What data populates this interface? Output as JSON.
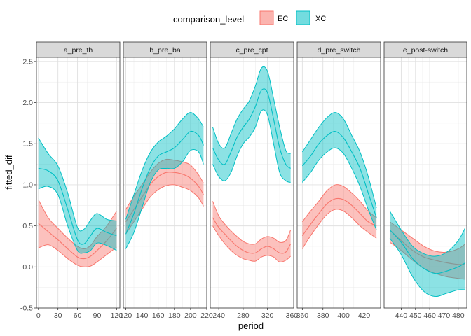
{
  "chart_data": {
    "type": "area",
    "xlabel": "period",
    "ylabel": "fitted_dif",
    "ylim": [
      -0.5,
      2.55
    ],
    "y_ticks": [
      -0.5,
      0.0,
      0.5,
      1.0,
      1.5,
      2.0,
      2.5
    ],
    "y_tick_labels": [
      "-0.5",
      "0.0",
      "0.5",
      "1.0",
      "1.5",
      "2.0",
      "2.5"
    ],
    "grid": true,
    "legend": {
      "title": "comparison_level",
      "position": "top",
      "entries": [
        {
          "name": "EC",
          "color": "#F8766D"
        },
        {
          "name": "XC",
          "color": "#00BFC4"
        }
      ]
    },
    "panels": [
      {
        "strip": "a_pre_th",
        "xlim": [
          -3,
          125
        ],
        "x_ticks": [
          0,
          30,
          60,
          90,
          120
        ],
        "x_tick_labels": [
          "0",
          "30",
          "60",
          "90",
          "120"
        ],
        "series": [
          {
            "name": "EC",
            "x": [
              0,
              15,
              30,
              45,
              60,
              70,
              80,
              90,
              105,
              120
            ],
            "fit": [
              0.53,
              0.43,
              0.33,
              0.22,
              0.12,
              0.1,
              0.13,
              0.2,
              0.32,
              0.47
            ],
            "lower": [
              0.23,
              0.27,
              0.2,
              0.1,
              0.02,
              0.0,
              0.01,
              0.06,
              0.15,
              0.24
            ],
            "upper": [
              0.82,
              0.6,
              0.47,
              0.35,
              0.25,
              0.22,
              0.26,
              0.37,
              0.5,
              0.68
            ]
          },
          {
            "name": "XC",
            "x": [
              0,
              15,
              30,
              45,
              60,
              70,
              80,
              90,
              105,
              120
            ],
            "fit": [
              1.2,
              1.17,
              1.05,
              0.7,
              0.33,
              0.28,
              0.38,
              0.47,
              0.42,
              0.38
            ],
            "lower": [
              0.95,
              0.98,
              0.88,
              0.5,
              0.2,
              0.17,
              0.2,
              0.29,
              0.26,
              0.2
            ],
            "upper": [
              1.57,
              1.38,
              1.23,
              0.9,
              0.48,
              0.46,
              0.57,
              0.65,
              0.58,
              0.56
            ]
          }
        ]
      },
      {
        "strip": "b_pre_ba",
        "xlim": [
          117,
          220
        ],
        "x_ticks": [
          120,
          140,
          160,
          180,
          200,
          220
        ],
        "x_tick_labels": [
          "120",
          "140",
          "160",
          "180",
          "200",
          "220"
        ],
        "series": [
          {
            "name": "EC",
            "x": [
              120,
              130,
              140,
              150,
              160,
              170,
              180,
              190,
              200,
              210,
              216
            ],
            "fit": [
              0.55,
              0.7,
              0.85,
              1.0,
              1.1,
              1.15,
              1.15,
              1.13,
              1.08,
              0.98,
              0.88
            ],
            "lower": [
              0.4,
              0.55,
              0.7,
              0.85,
              0.94,
              0.99,
              1.0,
              0.97,
              0.93,
              0.84,
              0.74
            ],
            "upper": [
              0.7,
              0.86,
              1.0,
              1.15,
              1.26,
              1.31,
              1.3,
              1.28,
              1.24,
              1.12,
              1.02
            ]
          },
          {
            "name": "XC",
            "x": [
              120,
              130,
              140,
              150,
              160,
              170,
              180,
              190,
              200,
              210,
              216
            ],
            "fit": [
              0.4,
              0.65,
              0.95,
              1.2,
              1.35,
              1.4,
              1.45,
              1.55,
              1.65,
              1.6,
              1.48
            ],
            "lower": [
              0.22,
              0.42,
              0.72,
              1.02,
              1.18,
              1.2,
              1.2,
              1.28,
              1.42,
              1.4,
              1.25
            ],
            "upper": [
              0.58,
              0.88,
              1.17,
              1.39,
              1.52,
              1.59,
              1.68,
              1.8,
              1.88,
              1.8,
              1.7
            ]
          }
        ]
      },
      {
        "strip": "c_pre_cpt",
        "xlim": [
          226,
          363
        ],
        "x_ticks": [
          240,
          280,
          320,
          360
        ],
        "x_tick_labels": [
          "240",
          "280",
          "320",
          "360"
        ],
        "series": [
          {
            "name": "EC",
            "x": [
              230,
              240,
              250,
              260,
              270,
              280,
              290,
              300,
              310,
              320,
              330,
              340,
              350,
              358
            ],
            "fit": [
              0.6,
              0.48,
              0.4,
              0.32,
              0.25,
              0.2,
              0.17,
              0.17,
              0.22,
              0.25,
              0.22,
              0.17,
              0.18,
              0.28
            ],
            "lower": [
              0.5,
              0.38,
              0.28,
              0.2,
              0.14,
              0.1,
              0.08,
              0.07,
              0.12,
              0.14,
              0.12,
              0.06,
              0.08,
              0.13
            ],
            "upper": [
              0.8,
              0.62,
              0.52,
              0.44,
              0.37,
              0.31,
              0.28,
              0.28,
              0.34,
              0.37,
              0.35,
              0.3,
              0.32,
              0.45
            ]
          },
          {
            "name": "XC",
            "x": [
              230,
              240,
              250,
              260,
              270,
              280,
              290,
              300,
              310,
              320,
              330,
              340,
              350,
              358
            ],
            "fit": [
              1.45,
              1.3,
              1.25,
              1.4,
              1.58,
              1.7,
              1.8,
              1.95,
              2.15,
              2.12,
              1.8,
              1.45,
              1.25,
              1.2
            ],
            "lower": [
              1.25,
              1.1,
              1.05,
              1.15,
              1.35,
              1.5,
              1.58,
              1.7,
              1.9,
              1.85,
              1.5,
              1.15,
              1.05,
              1.03
            ],
            "upper": [
              1.7,
              1.5,
              1.45,
              1.62,
              1.8,
              1.92,
              2.02,
              2.2,
              2.42,
              2.38,
              2.05,
              1.7,
              1.42,
              1.38
            ]
          }
        ]
      },
      {
        "strip": "d_pre_switch",
        "xlim": [
          355,
          436
        ],
        "x_ticks": [
          360,
          380,
          400,
          420
        ],
        "x_tick_labels": [
          "360",
          "380",
          "400",
          "420"
        ],
        "series": [
          {
            "name": "EC",
            "x": [
              360,
              368,
              376,
              384,
              392,
              400,
              408,
              416,
              424,
              432
            ],
            "fit": [
              0.38,
              0.52,
              0.65,
              0.77,
              0.83,
              0.82,
              0.75,
              0.65,
              0.55,
              0.5
            ],
            "lower": [
              0.22,
              0.38,
              0.52,
              0.64,
              0.7,
              0.68,
              0.6,
              0.5,
              0.42,
              0.35
            ],
            "upper": [
              0.55,
              0.68,
              0.8,
              0.93,
              1.0,
              0.98,
              0.9,
              0.8,
              0.68,
              0.6
            ]
          },
          {
            "name": "XC",
            "x": [
              360,
              368,
              376,
              384,
              392,
              400,
              408,
              416,
              424,
              432
            ],
            "fit": [
              1.23,
              1.35,
              1.5,
              1.6,
              1.65,
              1.57,
              1.4,
              1.2,
              0.9,
              0.6
            ],
            "lower": [
              1.03,
              1.15,
              1.3,
              1.4,
              1.45,
              1.38,
              1.2,
              0.98,
              0.7,
              0.45
            ],
            "upper": [
              1.4,
              1.55,
              1.7,
              1.82,
              1.88,
              1.8,
              1.6,
              1.4,
              1.1,
              0.72
            ]
          }
        ]
      },
      {
        "strip": "e_post-switch",
        "xlim": [
          428,
          486
        ],
        "x_ticks": [
          440,
          450,
          460,
          470,
          480
        ],
        "x_tick_labels": [
          "440",
          "450",
          "460",
          "470",
          "480"
        ],
        "series": [
          {
            "name": "EC",
            "x": [
              432,
              440,
              448,
              456,
              464,
              472,
              480,
              485
            ],
            "fit": [
              0.45,
              0.32,
              0.2,
              0.12,
              0.08,
              0.05,
              0.03,
              0.03
            ],
            "lower": [
              0.3,
              0.2,
              0.08,
              -0.02,
              -0.08,
              -0.12,
              -0.14,
              -0.15
            ],
            "upper": [
              0.55,
              0.45,
              0.35,
              0.25,
              0.19,
              0.18,
              0.22,
              0.28
            ]
          },
          {
            "name": "XC",
            "x": [
              432,
              440,
              448,
              456,
              464,
              472,
              480,
              485
            ],
            "fit": [
              0.45,
              0.3,
              0.1,
              -0.02,
              -0.08,
              -0.05,
              0.0,
              0.05
            ],
            "lower": [
              0.35,
              0.15,
              -0.12,
              -0.3,
              -0.36,
              -0.32,
              -0.28,
              -0.28
            ],
            "upper": [
              0.68,
              0.45,
              0.25,
              0.16,
              0.13,
              0.18,
              0.32,
              0.48
            ]
          }
        ]
      }
    ]
  }
}
